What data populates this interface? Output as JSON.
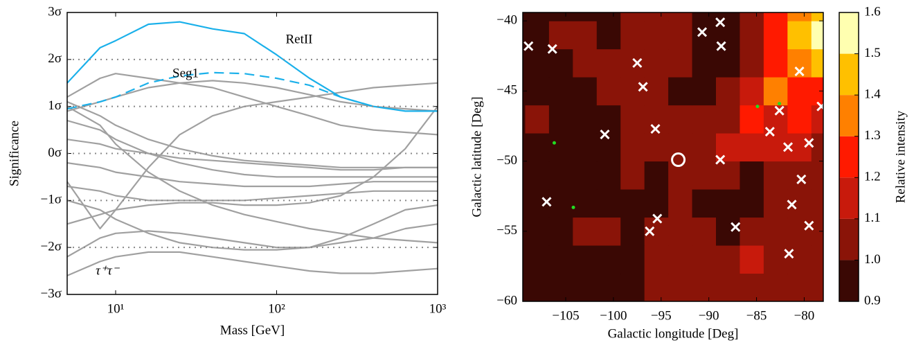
{
  "chart_data": [
    {
      "type": "line",
      "x_label": "Mass [GeV]",
      "y_label": "Significance",
      "log_x": true,
      "grid": true,
      "xlim": [
        5,
        1000
      ],
      "ylim": [
        -3,
        3
      ],
      "xticks": [
        {
          "value": 10,
          "label": "10¹"
        },
        {
          "value": 100,
          "label": "10²"
        },
        {
          "value": 1000,
          "label": "10³"
        }
      ],
      "yticks": [
        {
          "value": -3,
          "label": "−3σ"
        },
        {
          "value": -2,
          "label": "−2σ"
        },
        {
          "value": -1,
          "label": "−1σ"
        },
        {
          "value": 0,
          "label": "0σ"
        },
        {
          "value": 1,
          "label": "1σ"
        },
        {
          "value": 2,
          "label": "2σ"
        },
        {
          "value": 3,
          "label": "3σ"
        }
      ],
      "annotations": [
        "RetII",
        "Seg1",
        "τ⁺τ⁻"
      ],
      "x": [
        5,
        8,
        10,
        16,
        25,
        40,
        63,
        100,
        160,
        250,
        400,
        630,
        1000
      ],
      "series": [
        {
          "color": "#a0a0a0",
          "values": [
            1.2,
            1.6,
            1.7,
            1.6,
            1.5,
            1.4,
            1.2,
            1.0,
            0.8,
            0.6,
            0.5,
            0.45,
            0.4
          ]
        },
        {
          "color": "#a0a0a0",
          "values": [
            0.9,
            1.1,
            1.2,
            1.4,
            1.5,
            1.55,
            1.5,
            1.4,
            1.25,
            1.1,
            1.0,
            0.95,
            0.9
          ]
        },
        {
          "color": "#a0a0a0",
          "values": [
            1.1,
            0.8,
            0.6,
            0.3,
            0.1,
            -0.05,
            -0.15,
            -0.2,
            -0.25,
            -0.3,
            -0.3,
            -0.3,
            -0.3
          ]
        },
        {
          "color": "#a0a0a0",
          "values": [
            0.7,
            0.5,
            0.3,
            0.0,
            -0.2,
            -0.35,
            -0.45,
            -0.5,
            -0.5,
            -0.5,
            -0.5,
            -0.5,
            -0.5
          ]
        },
        {
          "color": "#a0a0a0",
          "values": [
            -0.2,
            -0.3,
            -0.4,
            -0.5,
            -0.6,
            -0.65,
            -0.7,
            -0.7,
            -0.7,
            -0.65,
            -0.6,
            -0.6,
            -0.6
          ]
        },
        {
          "color": "#a0a0a0",
          "values": [
            -0.7,
            -0.8,
            -0.9,
            -1.0,
            -1.0,
            -1.0,
            -1.0,
            -0.95,
            -0.9,
            -0.85,
            -0.8,
            -0.8,
            -0.8
          ]
        },
        {
          "color": "#a0a0a0",
          "values": [
            -1.5,
            -1.3,
            -1.2,
            -1.1,
            -1.05,
            -1.05,
            -1.1,
            -1.1,
            -1.05,
            -0.9,
            -0.5,
            0.1,
            1.0
          ]
        },
        {
          "color": "#a0a0a0",
          "values": [
            -2.2,
            -1.8,
            -1.7,
            -1.65,
            -1.7,
            -1.8,
            -1.9,
            -2.0,
            -2.0,
            -1.8,
            -1.5,
            -1.2,
            -1.1
          ]
        },
        {
          "color": "#a0a0a0",
          "values": [
            -2.6,
            -2.3,
            -2.2,
            -2.1,
            -2.1,
            -2.2,
            -2.3,
            -2.4,
            -2.5,
            -2.55,
            -2.55,
            -2.5,
            -2.45
          ]
        },
        {
          "color": "#a0a0a0",
          "values": [
            -0.6,
            -1.6,
            -1.2,
            -0.3,
            0.4,
            0.8,
            1.0,
            1.1,
            1.2,
            1.3,
            1.4,
            1.45,
            1.5
          ]
        },
        {
          "color": "#a0a0a0",
          "values": [
            0.3,
            0.2,
            0.1,
            0.0,
            -0.1,
            -0.15,
            -0.2,
            -0.25,
            -0.3,
            -0.35,
            -0.35,
            -0.3,
            -0.3
          ]
        },
        {
          "color": "#a0a0a0",
          "values": [
            1.0,
            0.6,
            0.2,
            -0.4,
            -0.8,
            -1.1,
            -1.3,
            -1.45,
            -1.6,
            -1.7,
            -1.8,
            -1.85,
            -1.9
          ]
        },
        {
          "color": "#a0a0a0",
          "values": [
            -1.0,
            -1.2,
            -1.4,
            -1.7,
            -1.9,
            -2.0,
            -2.05,
            -2.05,
            -2.0,
            -1.9,
            -1.8,
            -1.6,
            -1.5
          ]
        },
        {
          "color": "#1ab0ea",
          "style": "dashed",
          "values": [
            0.95,
            1.1,
            1.2,
            1.5,
            1.65,
            1.72,
            1.7,
            1.6,
            1.45,
            1.2,
            1.0,
            null,
            null
          ]
        },
        {
          "color": "#1ab0ea",
          "style": "solid",
          "values": [
            1.5,
            2.25,
            2.4,
            2.75,
            2.8,
            2.65,
            2.55,
            2.1,
            1.6,
            1.2,
            1.0,
            0.9,
            0.9
          ]
        }
      ]
    },
    {
      "type": "heatmap",
      "x_label": "Galactic longitude [Deg]",
      "y_label": "Galactic latitude [Deg]",
      "xlim": [
        -109.5,
        -78
      ],
      "ylim": [
        -60,
        -39.4
      ],
      "xticks": [
        {
          "value": -105,
          "label": "−105"
        },
        {
          "value": -100,
          "label": "−100"
        },
        {
          "value": -95,
          "label": "−95"
        },
        {
          "value": -90,
          "label": "−90"
        },
        {
          "value": -85,
          "label": "−85"
        },
        {
          "value": -80,
          "label": "−80"
        }
      ],
      "yticks": [
        {
          "value": -40,
          "label": "−40"
        },
        {
          "value": -45,
          "label": "−45"
        },
        {
          "value": -50,
          "label": "−50"
        },
        {
          "value": -55,
          "label": "−55"
        },
        {
          "value": -60,
          "label": "−60"
        }
      ],
      "x": [
        -108,
        -105.5,
        -103,
        -100.5,
        -98,
        -95.5,
        -93,
        -90.5,
        -88,
        -85.5,
        -83,
        -80.5,
        -78
      ],
      "y": [
        -59,
        -57,
        -55,
        -53,
        -51,
        -49,
        -47,
        -45,
        -43,
        -41,
        -39
      ],
      "z": [
        [
          0.95,
          0.95,
          0.95,
          0.95,
          0.95,
          1.05,
          1.05,
          1.05,
          1.05,
          1.05,
          1.05,
          1.05,
          1.05
        ],
        [
          0.95,
          0.95,
          0.95,
          0.95,
          0.95,
          1.05,
          1.05,
          1.05,
          1.05,
          1.15,
          1.05,
          1.05,
          1.05
        ],
        [
          0.95,
          0.95,
          1.05,
          1.05,
          0.95,
          1.05,
          1.05,
          1.05,
          0.95,
          1.05,
          1.05,
          1.05,
          1.05
        ],
        [
          0.95,
          0.95,
          0.95,
          0.95,
          0.95,
          0.95,
          1.05,
          0.95,
          0.95,
          0.95,
          1.05,
          1.05,
          1.05
        ],
        [
          0.95,
          0.95,
          0.95,
          0.95,
          1.05,
          0.95,
          1.05,
          1.05,
          1.05,
          0.95,
          1.05,
          1.05,
          1.05
        ],
        [
          0.95,
          0.95,
          0.95,
          0.95,
          1.05,
          1.05,
          1.05,
          1.05,
          1.15,
          1.15,
          1.15,
          1.15,
          1.05
        ],
        [
          1.05,
          0.95,
          0.95,
          0.95,
          1.05,
          1.05,
          1.05,
          1.05,
          1.05,
          1.25,
          1.15,
          1.25,
          1.15
        ],
        [
          0.95,
          0.95,
          0.95,
          1.05,
          1.05,
          1.05,
          0.95,
          0.95,
          1.05,
          1.15,
          1.35,
          1.25,
          1.25
        ],
        [
          0.95,
          0.95,
          1.05,
          1.05,
          1.05,
          1.05,
          1.05,
          0.95,
          0.95,
          1.05,
          1.25,
          1.35,
          1.45
        ],
        [
          0.95,
          1.05,
          1.05,
          0.95,
          1.05,
          1.05,
          1.05,
          0.95,
          0.95,
          1.05,
          1.25,
          1.45,
          1.55
        ],
        [
          0.95,
          0.95,
          0.95,
          0.95,
          1.05,
          1.05,
          1.05,
          0.95,
          0.95,
          1.05,
          1.25,
          1.35,
          1.45
        ]
      ],
      "colorbar": {
        "label": "Relative intensity",
        "levels": [
          0.9,
          1.0,
          1.1,
          1.2,
          1.3,
          1.4,
          1.5,
          1.6
        ],
        "colors": [
          "#3a0804",
          "#8a1408",
          "#c81a0c",
          "#ff1a00",
          "#ff8000",
          "#ffc000",
          "#ffffb0"
        ],
        "ticks": [
          0.9,
          {
            "value": 1.0,
            "label": "1.0"
          },
          1.1,
          1.2,
          1.3,
          1.4,
          1.5,
          1.6
        ]
      },
      "crosses": {
        "color": "#ffffff",
        "x": [
          -108.9,
          -106.4,
          -97.5,
          -96.9,
          -95.6,
          -100.9,
          -90.7,
          -88.8,
          -88.7,
          -80.5,
          -82.6,
          -78.2,
          -83.6,
          -81.7,
          -79.5,
          -88.8,
          -80.3,
          -107.0,
          -81.3,
          -95.4,
          -96.2,
          -87.2,
          -79.5,
          -81.6
        ],
        "y": [
          -41.8,
          -42.0,
          -43.0,
          -44.7,
          -47.7,
          -48.1,
          -40.8,
          -40.1,
          -41.8,
          -43.6,
          -46.4,
          -46.1,
          -47.9,
          -49.0,
          -48.7,
          -49.9,
          -51.3,
          -52.9,
          -53.1,
          -54.1,
          -55.0,
          -54.7,
          -54.6,
          -56.6
        ]
      },
      "circle": {
        "color": "#ffffff",
        "x": -93.2,
        "y": -49.9
      },
      "sources": {
        "color": "#22dd22",
        "x": [
          -106.2,
          -104.2,
          -84.9,
          -82.6
        ],
        "y": [
          -48.7,
          -53.3,
          -46.1,
          -45.9
        ]
      }
    }
  ]
}
